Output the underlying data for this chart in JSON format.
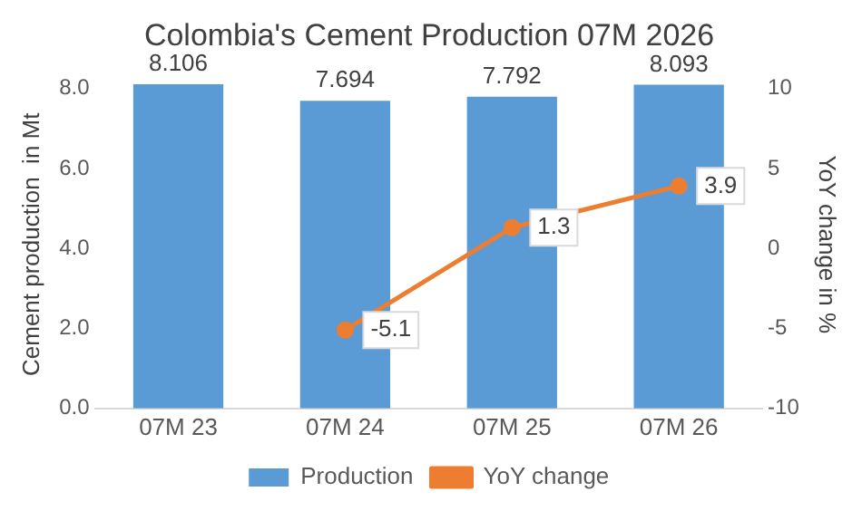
{
  "chart_data": {
    "type": "bar",
    "title": "Colombia's Cement Production 07M 2026",
    "ylabel": "Cement production  in Mt",
    "y2label": "YoY change in %",
    "categories": [
      "07M 23",
      "07M 24",
      "07M 25",
      "07M 26"
    ],
    "series": [
      {
        "name": "Production",
        "color": "#5b9bd5",
        "values": [
          8.106,
          7.694,
          7.792,
          8.093
        ]
      },
      {
        "name": "YoY change",
        "type": "line",
        "axis": "y2",
        "color": "#ed7d31",
        "values": [
          null,
          -5.1,
          1.3,
          3.9
        ]
      }
    ],
    "ylim": [
      0,
      8.2
    ],
    "yticks": [
      {
        "value": 0,
        "label": "0.0"
      },
      {
        "value": 2,
        "label": "2.0"
      },
      {
        "value": 4,
        "label": "4.0"
      },
      {
        "value": 6,
        "label": "6.0"
      },
      {
        "value": 8,
        "label": "8.0"
      }
    ],
    "y2lim": [
      -10,
      10.5
    ],
    "y2ticks": [
      -10,
      -5,
      0,
      5,
      10
    ],
    "data_labels": true,
    "legend": "bottom",
    "marker": "circle",
    "line_style": "solid"
  }
}
